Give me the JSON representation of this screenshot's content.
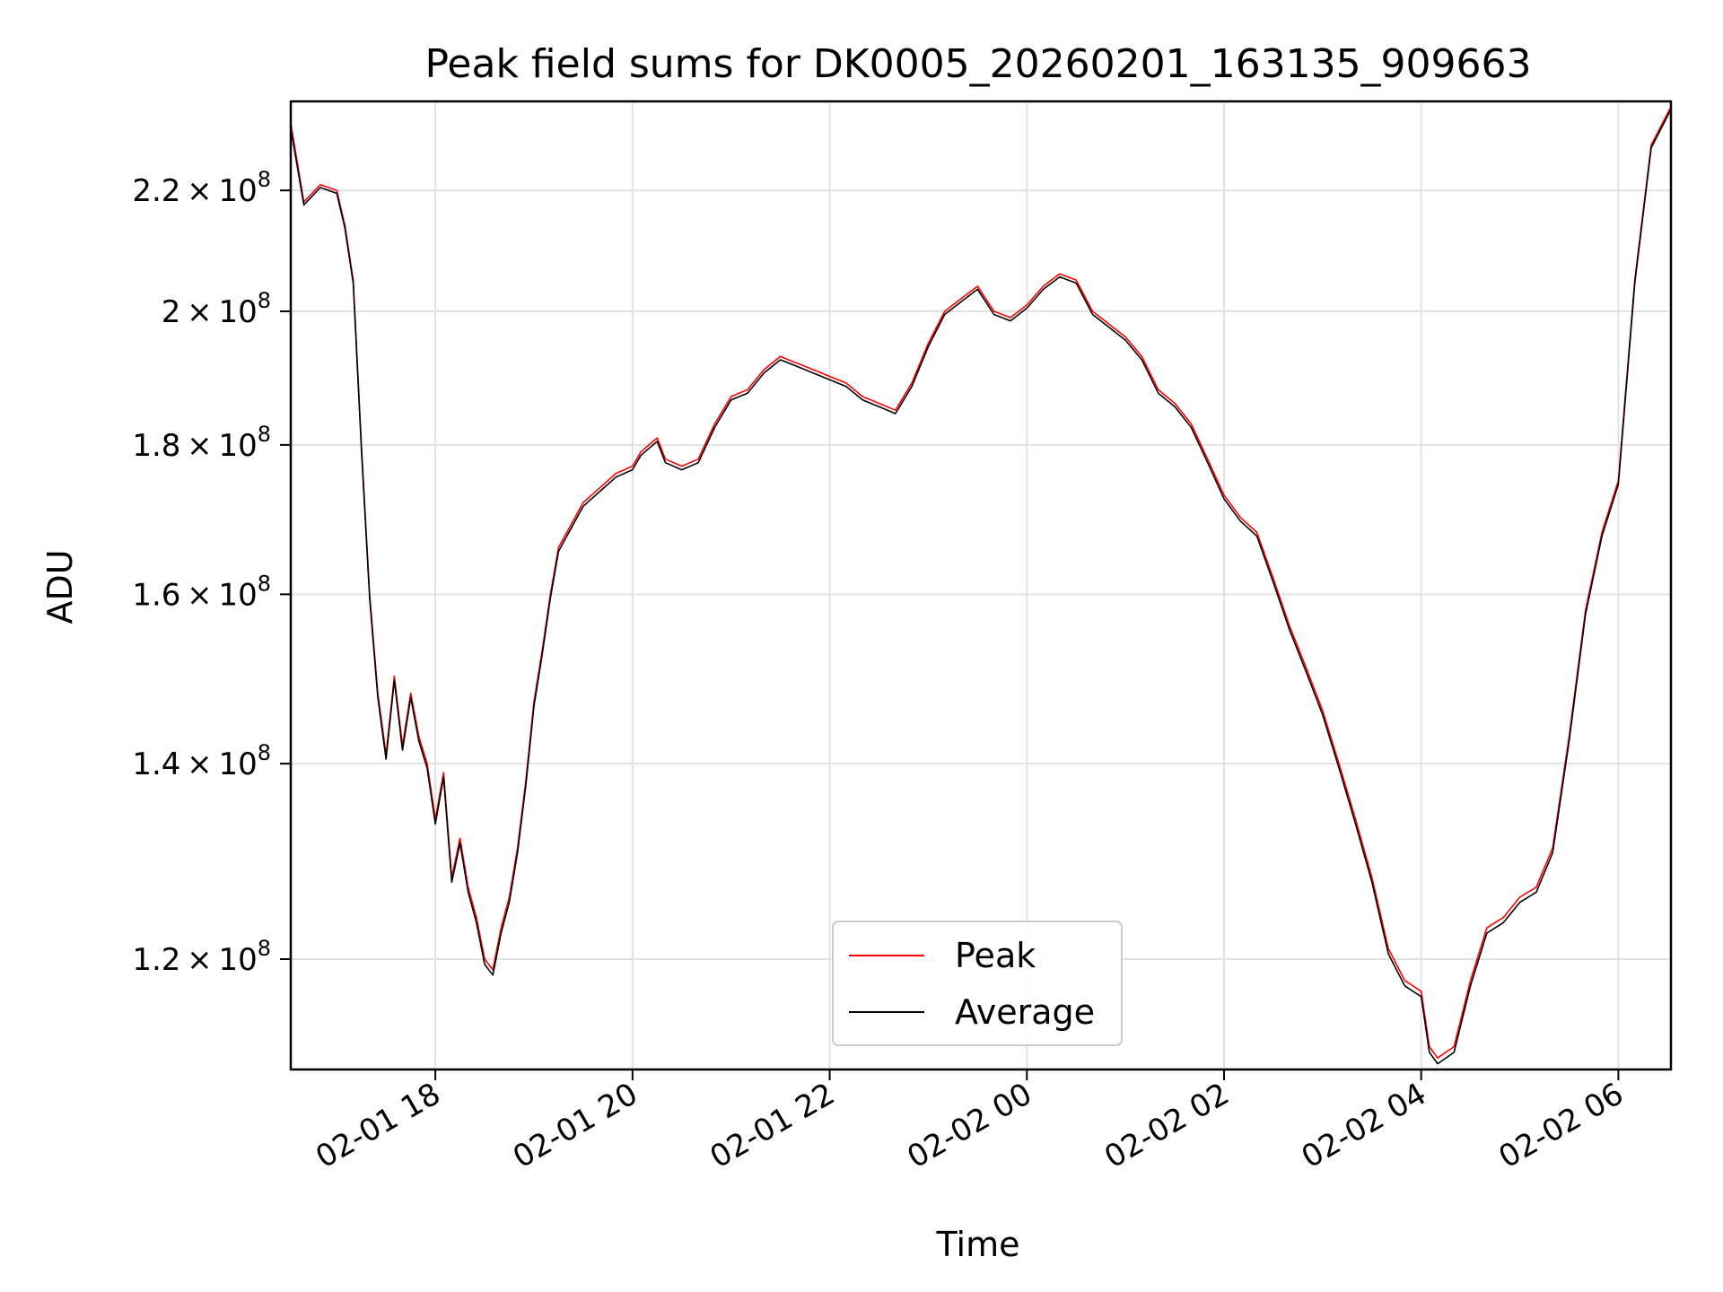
{
  "chart_data": {
    "type": "line",
    "title": "Peak field sums for DK0005_20260201_163135_909663",
    "xlabel": "Time",
    "ylabel": "ADU",
    "y_scale": "log",
    "xlim": [
      "2026-02-01 16:32",
      "2026-02-02 06:32"
    ],
    "ylim": [
      110000000,
      236000000
    ],
    "x_ticks": [
      "2026-02-01 18:00",
      "2026-02-01 20:00",
      "2026-02-01 22:00",
      "2026-02-02 00:00",
      "2026-02-02 02:00",
      "2026-02-02 04:00",
      "2026-02-02 06:00"
    ],
    "x_tick_labels": [
      "02-01 18",
      "02-01 20",
      "02-01 22",
      "02-02 00",
      "02-02 02",
      "02-02 04",
      "02-02 06"
    ],
    "y_ticks": [
      120000000,
      140000000,
      160000000,
      180000000,
      200000000,
      220000000
    ],
    "y_tick_labels": [
      {
        "mantissa": "1.2",
        "exp": "8"
      },
      {
        "mantissa": "1.4",
        "exp": "8"
      },
      {
        "mantissa": "1.6",
        "exp": "8"
      },
      {
        "mantissa": "1.8",
        "exp": "8"
      },
      {
        "mantissa": "2",
        "exp": "8"
      },
      {
        "mantissa": "2.2",
        "exp": "8"
      }
    ],
    "grid": true,
    "legend_position": "lower-center",
    "x": [
      "2026-02-01 16:32",
      "2026-02-01 16:40",
      "2026-02-01 16:50",
      "2026-02-01 17:00",
      "2026-02-01 17:05",
      "2026-02-01 17:10",
      "2026-02-01 17:15",
      "2026-02-01 17:20",
      "2026-02-01 17:25",
      "2026-02-01 17:30",
      "2026-02-01 17:35",
      "2026-02-01 17:40",
      "2026-02-01 17:45",
      "2026-02-01 17:50",
      "2026-02-01 17:55",
      "2026-02-01 18:00",
      "2026-02-01 18:05",
      "2026-02-01 18:10",
      "2026-02-01 18:15",
      "2026-02-01 18:20",
      "2026-02-01 18:25",
      "2026-02-01 18:30",
      "2026-02-01 18:35",
      "2026-02-01 18:40",
      "2026-02-01 18:45",
      "2026-02-01 18:50",
      "2026-02-01 18:55",
      "2026-02-01 19:00",
      "2026-02-01 19:05",
      "2026-02-01 19:10",
      "2026-02-01 19:15",
      "2026-02-01 19:20",
      "2026-02-01 19:30",
      "2026-02-01 19:40",
      "2026-02-01 19:50",
      "2026-02-01 20:00",
      "2026-02-01 20:05",
      "2026-02-01 20:10",
      "2026-02-01 20:15",
      "2026-02-01 20:20",
      "2026-02-01 20:30",
      "2026-02-01 20:40",
      "2026-02-01 20:50",
      "2026-02-01 21:00",
      "2026-02-01 21:10",
      "2026-02-01 21:20",
      "2026-02-01 21:30",
      "2026-02-01 21:40",
      "2026-02-01 21:50",
      "2026-02-01 22:00",
      "2026-02-01 22:10",
      "2026-02-01 22:20",
      "2026-02-01 22:30",
      "2026-02-01 22:40",
      "2026-02-01 22:50",
      "2026-02-01 23:00",
      "2026-02-01 23:10",
      "2026-02-01 23:20",
      "2026-02-01 23:30",
      "2026-02-01 23:40",
      "2026-02-01 23:50",
      "2026-02-02 00:00",
      "2026-02-02 00:10",
      "2026-02-02 00:20",
      "2026-02-02 00:30",
      "2026-02-02 00:40",
      "2026-02-02 00:50",
      "2026-02-02 01:00",
      "2026-02-02 01:10",
      "2026-02-02 01:20",
      "2026-02-02 01:30",
      "2026-02-02 01:40",
      "2026-02-02 01:50",
      "2026-02-02 02:00",
      "2026-02-02 02:10",
      "2026-02-02 02:20",
      "2026-02-02 02:30",
      "2026-02-02 02:40",
      "2026-02-02 02:50",
      "2026-02-02 03:00",
      "2026-02-02 03:10",
      "2026-02-02 03:20",
      "2026-02-02 03:30",
      "2026-02-02 03:40",
      "2026-02-02 03:50",
      "2026-02-02 04:00",
      "2026-02-02 04:05",
      "2026-02-02 04:10",
      "2026-02-02 04:20",
      "2026-02-02 04:30",
      "2026-02-02 04:40",
      "2026-02-02 04:50",
      "2026-02-02 05:00",
      "2026-02-02 05:10",
      "2026-02-02 05:20",
      "2026-02-02 05:30",
      "2026-02-02 05:40",
      "2026-02-02 05:50",
      "2026-02-02 06:00",
      "2026-02-02 06:10",
      "2026-02-02 06:20",
      "2026-02-02 06:32"
    ],
    "series": [
      {
        "name": "Peak",
        "color": "#ff0000",
        "values": [
          232000000,
          218000000,
          221000000,
          220000000,
          214000000,
          205000000,
          180000000,
          160000000,
          148000000,
          141000000,
          150000000,
          142000000,
          148000000,
          143000000,
          140000000,
          134000000,
          139000000,
          128000000,
          132000000,
          127000000,
          124000000,
          120000000,
          119000000,
          123000000,
          126000000,
          131000000,
          138000000,
          147000000,
          153000000,
          160000000,
          166000000,
          168000000,
          172000000,
          174000000,
          176000000,
          177000000,
          179000000,
          180000000,
          181000000,
          178000000,
          177000000,
          178000000,
          183000000,
          187000000,
          188000000,
          191000000,
          193000000,
          192000000,
          191000000,
          190000000,
          189000000,
          187000000,
          186000000,
          185000000,
          189000000,
          195000000,
          200000000,
          202000000,
          204000000,
          200000000,
          199000000,
          201000000,
          204000000,
          206000000,
          205000000,
          200000000,
          198000000,
          196000000,
          193000000,
          188000000,
          186000000,
          183000000,
          178000000,
          173000000,
          170000000,
          168000000,
          162000000,
          156000000,
          151000000,
          146000000,
          140000000,
          134000000,
          128000000,
          121000000,
          118000000,
          117000000,
          112000000,
          111000000,
          112000000,
          118000000,
          123000000,
          124000000,
          126000000,
          127000000,
          131000000,
          143000000,
          158000000,
          168000000,
          175000000,
          205000000,
          228000000,
          235000000
        ]
      },
      {
        "name": "Average",
        "color": "#000000",
        "values": [
          231000000,
          217500000,
          220500000,
          219500000,
          213500000,
          204500000,
          179500000,
          159500000,
          147500000,
          140500000,
          149500000,
          141500000,
          147500000,
          142500000,
          139500000,
          133500000,
          138500000,
          127500000,
          131500000,
          126500000,
          123500000,
          119500000,
          118500000,
          122500000,
          125500000,
          130500000,
          137500000,
          146500000,
          152500000,
          159500000,
          165500000,
          167500000,
          171500000,
          173500000,
          175500000,
          176500000,
          178500000,
          179500000,
          180500000,
          177500000,
          176500000,
          177500000,
          182500000,
          186500000,
          187500000,
          190500000,
          192500000,
          191500000,
          190500000,
          189500000,
          188500000,
          186500000,
          185500000,
          184500000,
          188500000,
          194500000,
          199500000,
          201500000,
          203500000,
          199500000,
          198500000,
          200500000,
          203500000,
          205500000,
          204500000,
          199500000,
          197500000,
          195500000,
          192500000,
          187500000,
          185500000,
          182500000,
          177500000,
          172500000,
          169500000,
          167500000,
          161500000,
          155500000,
          150500000,
          145500000,
          139500000,
          133500000,
          127500000,
          120500000,
          117500000,
          116500000,
          111500000,
          110500000,
          111500000,
          117500000,
          122500000,
          123500000,
          125500000,
          126500000,
          130500000,
          142500000,
          157500000,
          167500000,
          174500000,
          204500000,
          227500000,
          234500000
        ]
      }
    ]
  }
}
